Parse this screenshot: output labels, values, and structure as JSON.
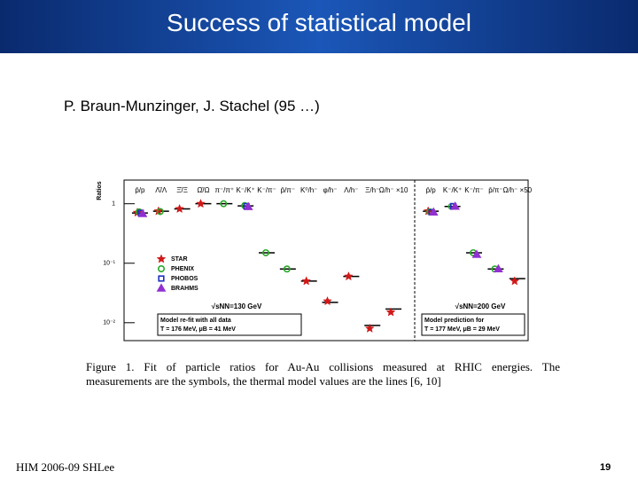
{
  "header": {
    "title": "Success of statistical model"
  },
  "subtitle": "P. Braun-Munzinger, J. Stachel  (95 …)",
  "caption": [
    "Figure 1.   Fit of particle ratios for Au-Au collisions measured at RHIC energies.  The",
    "measurements are the symbols, the thermal model values are the lines [6, 10]"
  ],
  "footer": {
    "left": "HIM 2006-09 SHLee",
    "page": "19"
  },
  "chart_data": [
    {
      "type": "scatter",
      "y_label": "Ratios",
      "log_y": true,
      "ylim": [
        0.005,
        2.5
      ],
      "yticks": [
        1,
        {
          "value": 0.1,
          "label": "10⁻¹"
        },
        {
          "value": 0.01,
          "label": "10⁻²"
        }
      ],
      "categories": [
        "p̄/p",
        "Λ̄/Λ",
        "Ξ̄/Ξ",
        "Ω̄/Ω",
        "π⁻/π⁺",
        "K⁻/K⁺",
        "K⁻/π⁻",
        "p̄/π⁻",
        "K⁰/h⁻",
        "φ/h⁻",
        "Λ/h⁻",
        "Ξ/h⁻",
        "Ω/h⁻ ×10"
      ],
      "series": [
        {
          "name": "STAR",
          "color": "#d01818",
          "marker": "star",
          "values": [
            0.71,
            0.75,
            0.82,
            1.0,
            null,
            null,
            null,
            null,
            0.05,
            0.023,
            0.06,
            0.008,
            0.015
          ]
        },
        {
          "name": "PHENIX",
          "color": "#28a828",
          "marker": "circle",
          "values": [
            0.73,
            0.74,
            null,
            null,
            1.0,
            0.93,
            0.15,
            0.08,
            null,
            null,
            null,
            null,
            null
          ]
        },
        {
          "name": "PHOBOS",
          "color": "#2030c0",
          "marker": "square",
          "values": [
            0.7,
            null,
            null,
            null,
            null,
            0.91,
            null,
            null,
            null,
            null,
            null,
            null,
            null
          ]
        },
        {
          "name": "BRAHMS",
          "color": "#9030d0",
          "marker": "triangle",
          "values": [
            0.68,
            null,
            null,
            null,
            null,
            0.89,
            null,
            null,
            null,
            null,
            null,
            null,
            null
          ]
        }
      ],
      "model": [
        0.7,
        0.75,
        0.82,
        1.0,
        1.0,
        0.92,
        0.15,
        0.08,
        0.05,
        0.022,
        0.06,
        0.009,
        0.017
      ],
      "energy": "√sNN=130 GeV",
      "note": [
        "Model re-fit with all data",
        "T = 176 MeV,   μB = 41 MeV"
      ]
    },
    {
      "type": "scatter",
      "log_y": true,
      "ylim": [
        0.005,
        2.5
      ],
      "categories": [
        "p̄/p",
        "K⁻/K⁺",
        "K⁻/π⁻",
        "p̄/π⁻",
        "Ω/h⁻ ×50"
      ],
      "series": [
        {
          "name": "STAR",
          "color": "#d01818",
          "marker": "star",
          "values": [
            0.75,
            null,
            null,
            null,
            0.05
          ]
        },
        {
          "name": "PHENIX",
          "color": "#28a828",
          "marker": "circle",
          "values": [
            0.73,
            0.9,
            0.15,
            0.08,
            null
          ]
        },
        {
          "name": "PHOBOS",
          "color": "#2030c0",
          "marker": "square",
          "values": [
            0.72,
            0.91,
            null,
            null,
            null
          ]
        },
        {
          "name": "BRAHMS",
          "color": "#9030d0",
          "marker": "triangle",
          "values": [
            0.72,
            0.9,
            0.14,
            0.08,
            null
          ]
        }
      ],
      "model": [
        0.75,
        0.9,
        0.15,
        0.08,
        0.055
      ],
      "energy": "√sNN=200 GeV",
      "note": [
        "Model prediction for",
        "T = 177 MeV,   μB = 29 MeV"
      ]
    }
  ]
}
